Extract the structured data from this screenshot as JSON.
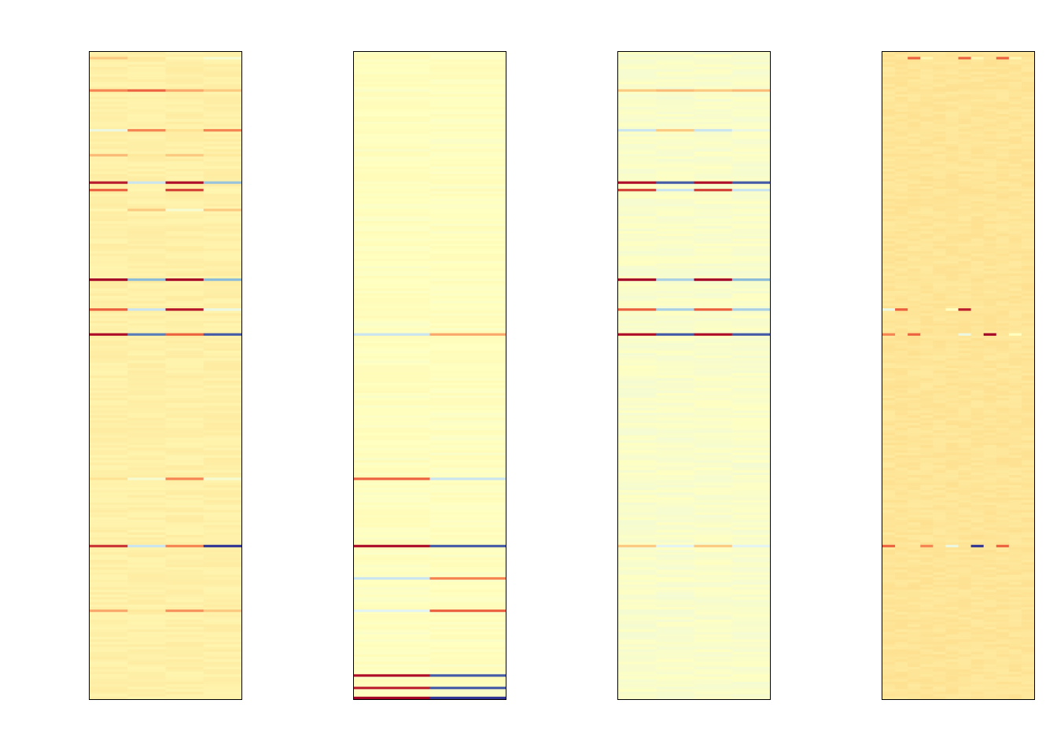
{
  "chart_data": [
    {
      "type": "heatmap",
      "title": "",
      "n_rows": 260,
      "n_columns": 4,
      "palette": [
        "#313695",
        "#74add1",
        "#e0f3f8",
        "#ffffbf",
        "#fee090",
        "#f46d43",
        "#a50026"
      ],
      "base_level": 0.58,
      "highlight_rows": [
        {
          "row": 2,
          "levels": [
            0.7,
            0.62,
            0.55,
            0.45
          ]
        },
        {
          "row": 15,
          "levels": [
            0.8,
            0.85,
            0.75,
            0.7
          ]
        },
        {
          "row": 31,
          "levels": [
            0.4,
            0.8,
            0.65,
            0.8
          ]
        },
        {
          "row": 41,
          "levels": [
            0.72,
            0.62,
            0.7,
            0.62
          ]
        },
        {
          "row": 52,
          "levels": [
            0.96,
            0.3,
            0.98,
            0.22
          ]
        },
        {
          "row": 55,
          "levels": [
            0.85,
            0.55,
            0.9,
            0.55
          ]
        },
        {
          "row": 63,
          "levels": [
            0.55,
            0.7,
            0.45,
            0.7
          ]
        },
        {
          "row": 91,
          "levels": [
            1.0,
            0.2,
            1.0,
            0.2
          ]
        },
        {
          "row": 103,
          "levels": [
            0.85,
            0.3,
            0.96,
            0.4
          ]
        },
        {
          "row": 113,
          "levels": [
            0.98,
            0.1,
            0.85,
            0.05
          ]
        },
        {
          "row": 171,
          "levels": [
            0.65,
            0.45,
            0.8,
            0.45
          ]
        },
        {
          "row": 198,
          "levels": [
            0.92,
            0.3,
            0.8,
            0.0
          ]
        },
        {
          "row": 224,
          "levels": [
            0.75,
            0.62,
            0.78,
            0.7
          ]
        }
      ]
    },
    {
      "type": "heatmap",
      "title": "",
      "n_rows": 260,
      "n_columns": 2,
      "palette": [
        "#313695",
        "#74add1",
        "#e0f3f8",
        "#ffffbf",
        "#fee090",
        "#f46d43",
        "#a50026"
      ],
      "base_level": 0.5,
      "highlight_rows": [
        {
          "row": 113,
          "levels": [
            0.3,
            0.75
          ]
        },
        {
          "row": 171,
          "levels": [
            0.85,
            0.3
          ]
        },
        {
          "row": 198,
          "levels": [
            0.98,
            0.05
          ]
        },
        {
          "row": 211,
          "levels": [
            0.3,
            0.8
          ]
        },
        {
          "row": 224,
          "levels": [
            0.35,
            0.85
          ]
        },
        {
          "row": 250,
          "levels": [
            0.98,
            0.05
          ]
        },
        {
          "row": 255,
          "levels": [
            0.95,
            0.05
          ]
        },
        {
          "row": 259,
          "levels": [
            1.0,
            0.0
          ]
        }
      ]
    },
    {
      "type": "heatmap",
      "title": "",
      "n_rows": 260,
      "n_columns": 4,
      "palette": [
        "#313695",
        "#74add1",
        "#e0f3f8",
        "#ffffbf",
        "#fee090",
        "#f46d43",
        "#a50026"
      ],
      "base_level": 0.47,
      "highlight_rows": [
        {
          "row": 15,
          "levels": [
            0.7,
            0.72,
            0.7,
            0.72
          ]
        },
        {
          "row": 31,
          "levels": [
            0.3,
            0.7,
            0.3,
            0.4
          ]
        },
        {
          "row": 52,
          "levels": [
            0.98,
            0.05,
            0.98,
            0.05
          ]
        },
        {
          "row": 55,
          "levels": [
            0.9,
            0.3,
            0.9,
            0.3
          ]
        },
        {
          "row": 91,
          "levels": [
            1.0,
            0.25,
            1.0,
            0.2
          ]
        },
        {
          "row": 103,
          "levels": [
            0.85,
            0.25,
            0.85,
            0.25
          ]
        },
        {
          "row": 113,
          "levels": [
            0.98,
            0.05,
            0.98,
            0.05
          ]
        },
        {
          "row": 198,
          "levels": [
            0.7,
            0.35,
            0.7,
            0.35
          ]
        }
      ]
    },
    {
      "type": "heatmap",
      "title": "",
      "n_rows": 260,
      "n_columns": 12,
      "palette": [
        "#313695",
        "#74add1",
        "#e0f3f8",
        "#ffffbf",
        "#fee090",
        "#f46d43",
        "#a50026"
      ],
      "base_level": 0.64,
      "highlight_rows": [
        {
          "row": 2,
          "levels": [
            0.64,
            0.64,
            0.85,
            0.55,
            0.64,
            0.64,
            0.85,
            0.55,
            0.64,
            0.85,
            0.55,
            0.64
          ]
        },
        {
          "row": 103,
          "levels": [
            0.4,
            0.85,
            0.64,
            0.64,
            0.64,
            0.5,
            0.95,
            0.64,
            0.64,
            0.64,
            0.64,
            0.64
          ]
        },
        {
          "row": 113,
          "levels": [
            0.8,
            0.64,
            0.85,
            0.64,
            0.64,
            0.64,
            0.4,
            0.64,
            1.0,
            0.64,
            0.5,
            0.64
          ]
        },
        {
          "row": 198,
          "levels": [
            0.85,
            0.64,
            0.64,
            0.8,
            0.64,
            0.4,
            0.64,
            0.0,
            0.64,
            0.85,
            0.64,
            0.64
          ]
        }
      ]
    }
  ]
}
